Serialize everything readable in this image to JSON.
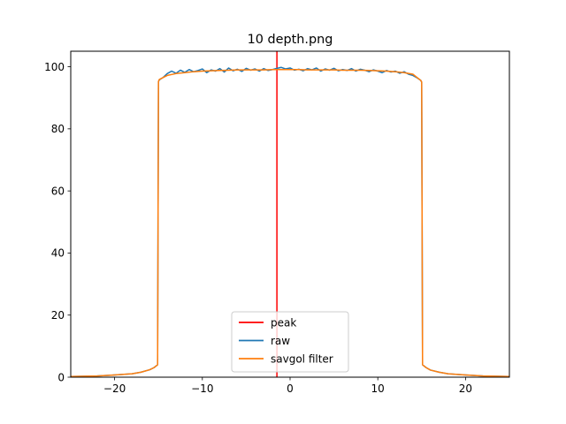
{
  "chart_data": {
    "type": "line",
    "title": "10 depth.png",
    "xlabel": "",
    "ylabel": "",
    "xlim": [
      -25,
      25
    ],
    "ylim": [
      0,
      105
    ],
    "xticks": [
      -20,
      -10,
      0,
      10,
      20
    ],
    "xtick_labels": [
      "−20",
      "−10",
      "0",
      "10",
      "20"
    ],
    "yticks": [
      0,
      20,
      40,
      60,
      80,
      100
    ],
    "ytick_labels": [
      "0",
      "20",
      "40",
      "60",
      "80",
      "100"
    ],
    "grid": false,
    "legend_position": "lower center",
    "peak_x": -1.5,
    "series": [
      {
        "name": "peak",
        "color": "#ff0000",
        "x": [
          -1.5,
          -1.5
        ],
        "y": [
          0,
          105
        ]
      },
      {
        "name": "raw",
        "color": "#1f77b4",
        "x": [
          -25,
          -22,
          -20,
          -18,
          -17,
          -16,
          -15.5,
          -15.1,
          -15.0,
          -14.9,
          -14.5,
          -14.0,
          -13.5,
          -13.0,
          -12.5,
          -12.0,
          -11.5,
          -11.0,
          -10.5,
          -10.0,
          -9.5,
          -9.0,
          -8.5,
          -8.0,
          -7.5,
          -7.0,
          -6.5,
          -6.0,
          -5.5,
          -5.0,
          -4.5,
          -4.0,
          -3.5,
          -3.0,
          -2.5,
          -2.0,
          -1.5,
          -1.0,
          -0.5,
          0.0,
          0.5,
          1.0,
          1.5,
          2.0,
          2.5,
          3.0,
          3.5,
          4.0,
          4.5,
          5.0,
          5.5,
          6.0,
          6.5,
          7.0,
          7.5,
          8.0,
          8.5,
          9.0,
          9.5,
          10.0,
          10.5,
          11.0,
          11.5,
          12.0,
          12.5,
          13.0,
          13.5,
          14.0,
          14.5,
          14.9,
          15.0,
          15.1,
          15.5,
          16,
          17,
          18,
          20,
          22,
          25
        ],
        "y": [
          0.2,
          0.4,
          0.7,
          1.1,
          1.6,
          2.4,
          3.1,
          4.0,
          95.2,
          95.8,
          96.5,
          97.8,
          98.6,
          97.9,
          98.9,
          98.2,
          99.1,
          98.4,
          98.8,
          99.3,
          98.1,
          99.0,
          98.6,
          99.4,
          98.3,
          99.6,
          98.7,
          99.2,
          98.5,
          99.5,
          98.9,
          99.3,
          98.6,
          99.4,
          98.8,
          99.1,
          99.5,
          99.8,
          99.3,
          99.6,
          98.9,
          99.2,
          98.7,
          99.4,
          99.0,
          99.6,
          98.6,
          99.3,
          98.9,
          99.5,
          98.7,
          99.1,
          98.8,
          99.4,
          98.6,
          99.2,
          98.9,
          98.4,
          99.0,
          98.6,
          98.1,
          98.8,
          98.3,
          98.6,
          97.9,
          98.4,
          97.6,
          97.2,
          96.4,
          95.6,
          95.0,
          4.0,
          3.1,
          2.3,
          1.6,
          1.1,
          0.7,
          0.4,
          0.2
        ]
      },
      {
        "name": "savgol filter",
        "color": "#ff7f0e",
        "x": [
          -25,
          -22,
          -20,
          -18,
          -17,
          -16,
          -15.5,
          -15.1,
          -15.0,
          -14.9,
          -14.0,
          -13.0,
          -12.0,
          -11.0,
          -10.0,
          -9.0,
          -8.0,
          -7.0,
          -6.0,
          -5.0,
          -4.0,
          -3.0,
          -2.0,
          -1.0,
          0.0,
          1.0,
          2.0,
          3.0,
          4.0,
          5.0,
          6.0,
          7.0,
          8.0,
          9.0,
          10.0,
          11.0,
          12.0,
          13.0,
          14.0,
          14.9,
          15.0,
          15.1,
          15.5,
          16,
          17,
          18,
          20,
          22,
          25
        ],
        "y": [
          0.2,
          0.4,
          0.7,
          1.1,
          1.6,
          2.4,
          3.1,
          4.0,
          95.3,
          95.9,
          97.2,
          97.8,
          98.1,
          98.4,
          98.6,
          98.7,
          98.8,
          98.9,
          99.0,
          99.0,
          99.0,
          99.0,
          99.1,
          99.1,
          99.1,
          99.1,
          99.0,
          99.0,
          99.0,
          99.0,
          98.9,
          98.9,
          98.9,
          98.8,
          98.7,
          98.6,
          98.4,
          98.1,
          97.6,
          95.6,
          95.1,
          4.0,
          3.1,
          2.3,
          1.6,
          1.1,
          0.7,
          0.4,
          0.2
        ]
      }
    ]
  }
}
